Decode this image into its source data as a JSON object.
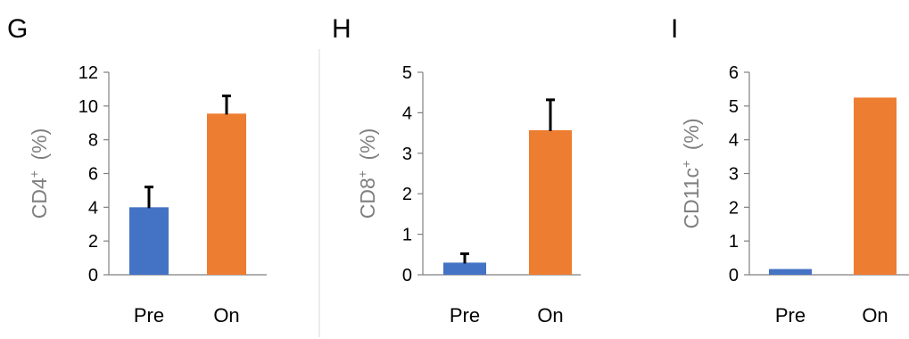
{
  "chart_data": [
    {
      "panel_label": "G",
      "type": "bar",
      "categories": [
        "Pre",
        "On"
      ],
      "values": [
        4.0,
        9.55
      ],
      "errors": [
        1.2,
        1.05
      ],
      "ylabel_main": "CD4",
      "ylabel_sup": "+",
      "ylabel_unit": "(%)",
      "ylim": [
        0,
        12
      ],
      "yticks": [
        0,
        2,
        4,
        6,
        8,
        10,
        12
      ],
      "bar_colors": [
        "#4472C4",
        "#ED7D31"
      ]
    },
    {
      "panel_label": "H",
      "type": "bar",
      "categories": [
        "Pre",
        "On"
      ],
      "values": [
        0.3,
        3.57
      ],
      "errors": [
        0.22,
        0.75
      ],
      "ylabel_main": "CD8",
      "ylabel_sup": "+",
      "ylabel_unit": "(%)",
      "ylim": [
        0,
        5
      ],
      "yticks": [
        0,
        1,
        2,
        3,
        4,
        5
      ],
      "bar_colors": [
        "#4472C4",
        "#ED7D31"
      ]
    },
    {
      "panel_label": "I",
      "type": "bar",
      "categories": [
        "Pre",
        "On"
      ],
      "values": [
        0.17,
        5.25
      ],
      "errors": [
        0,
        0
      ],
      "ylabel_main": "CD11c",
      "ylabel_sup": "+",
      "ylabel_unit": "(%)",
      "ylim": [
        0,
        6
      ],
      "yticks": [
        0,
        1,
        2,
        3,
        4,
        5,
        6
      ],
      "bar_colors": [
        "#4472C4",
        "#ED7D31"
      ]
    }
  ],
  "style": {
    "axis_color": "#808080",
    "tick_label_color": "#000000",
    "ylabel_color": "#7f7f7f",
    "divider_color": "#d9d9d9",
    "error_bar_color": "#000000"
  }
}
